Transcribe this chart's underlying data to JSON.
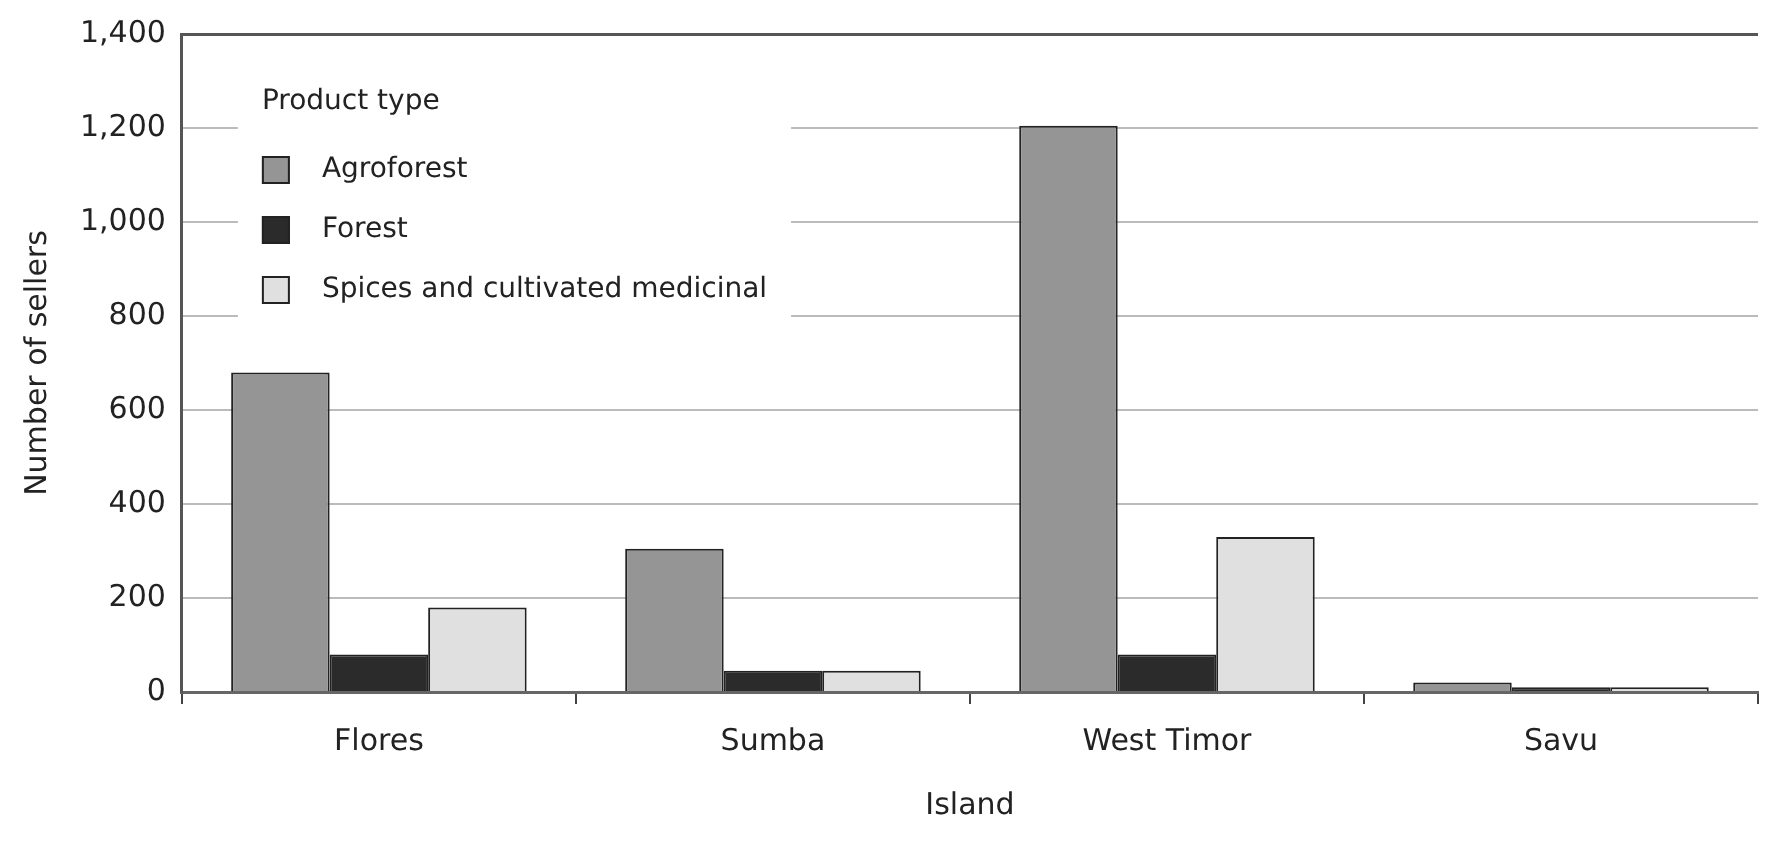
{
  "chart_data": {
    "type": "bar",
    "xlabel": "Island",
    "ylabel": "Number of sellers",
    "legend_title": "Product type",
    "categories": [
      "Flores",
      "Sumba",
      "West Timor",
      "Savu"
    ],
    "series": [
      {
        "name": "Agroforest",
        "color": "#959595",
        "values": [
          680,
          305,
          1205,
          20
        ]
      },
      {
        "name": "Forest",
        "color": "#2b2b2b",
        "values": [
          80,
          45,
          80,
          10
        ]
      },
      {
        "name": "Spices and cultivated medicinal",
        "color": "#e0e0e0",
        "values": [
          180,
          45,
          330,
          10
        ]
      }
    ],
    "ylim": [
      0,
      1400
    ],
    "yticks": [
      0,
      200,
      400,
      600,
      800,
      {
        "value": 1000,
        "label": "1,000"
      },
      {
        "value": 1200,
        "label": "1,200"
      },
      {
        "value": 1400,
        "label": "1,400"
      }
    ],
    "grid": "y",
    "legend": "top left"
  }
}
